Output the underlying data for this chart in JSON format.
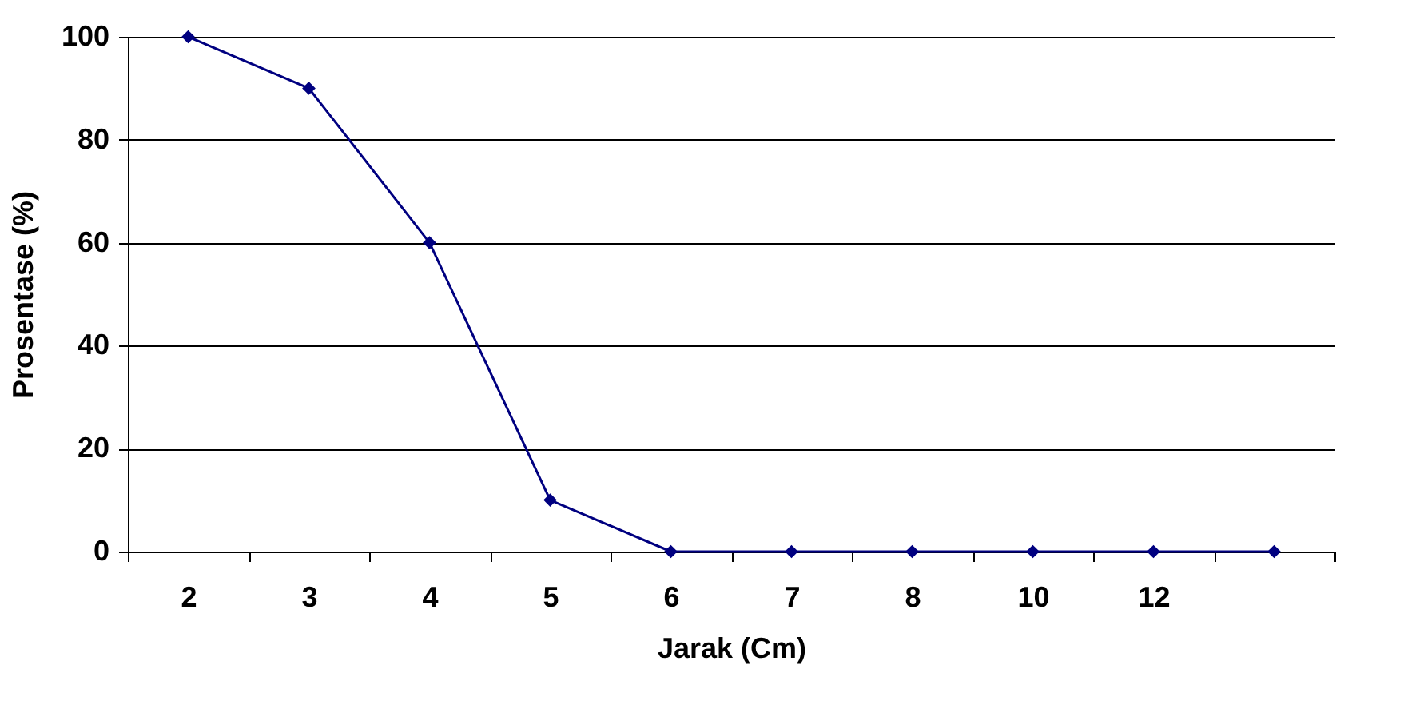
{
  "chart_data": {
    "type": "line",
    "xlabel": "Jarak (Cm)",
    "ylabel": "Prosentase (%)",
    "categories": [
      "2",
      "3",
      "4",
      "5",
      "6",
      "7",
      "8",
      "10",
      "12",
      null
    ],
    "series": [
      {
        "color": "#000080",
        "values": [
          100,
          90,
          60,
          10,
          0,
          0,
          0,
          0,
          0,
          0
        ]
      }
    ],
    "ylim": [
      0,
      100
    ],
    "yticks": [
      0,
      20,
      40,
      60,
      80,
      100
    ],
    "grid": "y",
    "marker": "diamond",
    "legend": false
  }
}
